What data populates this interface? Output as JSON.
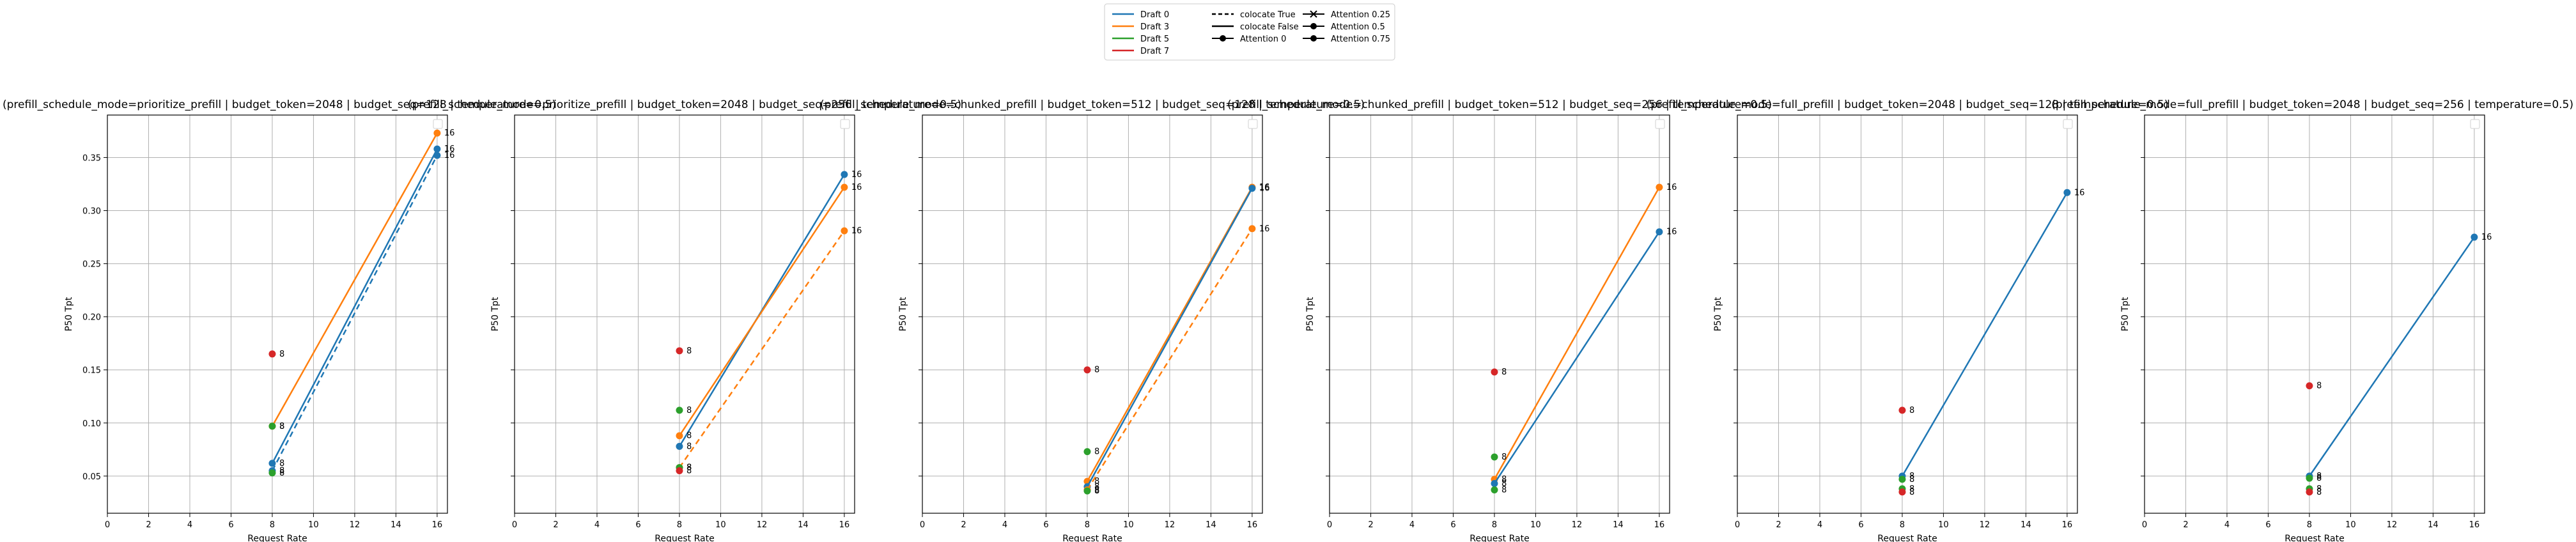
{
  "colors": {
    "draft0": "#1f77b4",
    "draft3": "#ff7f0e",
    "draft5": "#2ca02c",
    "draft7": "#d62728",
    "grid": "#b0b0b0"
  },
  "legend": {
    "columns": [
      [
        {
          "label": "Draft 0",
          "kind": "line",
          "color": "#1f77b4"
        },
        {
          "label": "Draft 3",
          "kind": "line",
          "color": "#ff7f0e"
        },
        {
          "label": "Draft 5",
          "kind": "line",
          "color": "#2ca02c"
        },
        {
          "label": "Draft 7",
          "kind": "line",
          "color": "#d62728"
        }
      ],
      [
        {
          "label": "colocate True",
          "kind": "dash",
          "color": "#000000"
        },
        {
          "label": "colocate False",
          "kind": "line",
          "color": "#000000"
        },
        {
          "label": "Attention 0",
          "kind": "dot",
          "color": "#000000"
        }
      ],
      [
        {
          "label": "Attention 0.25",
          "kind": "x",
          "color": "#000000"
        },
        {
          "label": "Attention 0.5",
          "kind": "dot",
          "color": "#000000"
        },
        {
          "label": "Attention 0.75",
          "kind": "dot",
          "color": "#000000"
        }
      ]
    ]
  },
  "chart_data": [
    {
      "type": "line",
      "title": "(prefill_schedule_mode=prioritize_prefill | budget_token=2048 | budget_seq=128 | temperature=0.5)",
      "xlabel": "Request Rate",
      "ylabel": "P50 Tpt",
      "xlim": [
        0,
        16.5
      ],
      "ylim": [
        0.015,
        0.39
      ],
      "xticks": [
        "0",
        "2",
        "4",
        "6",
        "8",
        "10",
        "12",
        "14",
        "16"
      ],
      "yticks": [
        "0.05",
        "0.10",
        "0.15",
        "0.20",
        "0.25",
        "0.30",
        "0.35"
      ],
      "grid": true,
      "show_yticklabels": true,
      "series": [
        {
          "color": "draft3",
          "dash": false,
          "x": [
            8,
            16
          ],
          "y": [
            0.097,
            0.373
          ],
          "labels": [
            "8",
            "16"
          ]
        },
        {
          "color": "draft0",
          "dash": false,
          "x": [
            8,
            16
          ],
          "y": [
            0.062,
            0.358
          ],
          "labels": [
            "8",
            "16"
          ]
        },
        {
          "color": "draft0",
          "dash": true,
          "x": [
            8,
            16
          ],
          "y": [
            0.055,
            0.352
          ],
          "labels": [
            "8",
            "16"
          ]
        },
        {
          "color": "draft5",
          "dash": false,
          "x": [
            8
          ],
          "y": [
            0.097
          ],
          "labels": [
            "8"
          ]
        },
        {
          "color": "draft5",
          "dash": false,
          "x": [
            8
          ],
          "y": [
            0.053
          ],
          "labels": [
            "8"
          ]
        },
        {
          "color": "draft7",
          "dash": false,
          "x": [
            8
          ],
          "y": [
            0.165
          ],
          "labels": [
            "8"
          ]
        }
      ]
    },
    {
      "type": "line",
      "title": "(prefill_schedule_mode=prioritize_prefill | budget_token=2048 | budget_seq=256 | temperature=0.5)",
      "xlabel": "Request Rate",
      "ylabel": "P50 Tpt",
      "xlim": [
        0,
        16.5
      ],
      "ylim": [
        0.015,
        0.39
      ],
      "xticks": [
        "0",
        "2",
        "4",
        "6",
        "8",
        "10",
        "12",
        "14",
        "16"
      ],
      "yticks": [
        "0.05",
        "0.10",
        "0.15",
        "0.20",
        "0.25",
        "0.30",
        "0.35"
      ],
      "grid": true,
      "show_yticklabels": false,
      "series": [
        {
          "color": "draft0",
          "dash": false,
          "x": [
            8,
            16
          ],
          "y": [
            0.078,
            0.334
          ],
          "labels": [
            "8",
            "16"
          ]
        },
        {
          "color": "draft3",
          "dash": false,
          "x": [
            8,
            16
          ],
          "y": [
            0.088,
            0.322
          ],
          "labels": [
            "8",
            "16"
          ]
        },
        {
          "color": "draft3",
          "dash": true,
          "x": [
            8,
            16
          ],
          "y": [
            0.058,
            0.281
          ],
          "labels": [
            "8",
            "16"
          ]
        },
        {
          "color": "draft5",
          "dash": false,
          "x": [
            8
          ],
          "y": [
            0.112
          ],
          "labels": [
            "8"
          ]
        },
        {
          "color": "draft5",
          "dash": false,
          "x": [
            8
          ],
          "y": [
            0.058
          ],
          "labels": [
            "8"
          ]
        },
        {
          "color": "draft7",
          "dash": false,
          "x": [
            8
          ],
          "y": [
            0.168
          ],
          "labels": [
            "8"
          ]
        },
        {
          "color": "draft7",
          "dash": false,
          "x": [
            8
          ],
          "y": [
            0.055
          ],
          "labels": [
            "8"
          ]
        }
      ]
    },
    {
      "type": "line",
      "title": "(prefill_schedule_mode=chunked_prefill | budget_token=512 | budget_seq=128 | temperature=0.5)",
      "xlabel": "Request Rate",
      "ylabel": "P50 Tpt",
      "xlim": [
        0,
        16.5
      ],
      "ylim": [
        0.015,
        0.39
      ],
      "xticks": [
        "0",
        "2",
        "4",
        "6",
        "8",
        "10",
        "12",
        "14",
        "16"
      ],
      "yticks": [
        "0.05",
        "0.10",
        "0.15",
        "0.20",
        "0.25",
        "0.30",
        "0.35"
      ],
      "grid": true,
      "show_yticklabels": false,
      "series": [
        {
          "color": "draft3",
          "dash": false,
          "x": [
            8,
            16
          ],
          "y": [
            0.045,
            0.322
          ],
          "labels": [
            "8",
            "16"
          ]
        },
        {
          "color": "draft0",
          "dash": false,
          "x": [
            8,
            16
          ],
          "y": [
            0.04,
            0.321
          ],
          "labels": [
            "8",
            "16"
          ]
        },
        {
          "color": "draft3",
          "dash": true,
          "x": [
            8,
            16
          ],
          "y": [
            0.037,
            0.283
          ],
          "labels": [
            "8",
            "16"
          ]
        },
        {
          "color": "draft5",
          "dash": false,
          "x": [
            8
          ],
          "y": [
            0.073
          ],
          "labels": [
            "8"
          ]
        },
        {
          "color": "draft5",
          "dash": false,
          "x": [
            8
          ],
          "y": [
            0.036
          ],
          "labels": [
            "8"
          ]
        },
        {
          "color": "draft7",
          "dash": false,
          "x": [
            8
          ],
          "y": [
            0.15
          ],
          "labels": [
            "8"
          ]
        }
      ]
    },
    {
      "type": "line",
      "title": "(prefill_schedule_mode=chunked_prefill | budget_token=512 | budget_seq=256 | temperature=0.5)",
      "xlabel": "Request Rate",
      "ylabel": "P50 Tpt",
      "xlim": [
        0,
        16.5
      ],
      "ylim": [
        0.015,
        0.39
      ],
      "xticks": [
        "0",
        "2",
        "4",
        "6",
        "8",
        "10",
        "12",
        "14",
        "16"
      ],
      "yticks": [
        "0.05",
        "0.10",
        "0.15",
        "0.20",
        "0.25",
        "0.30",
        "0.35"
      ],
      "grid": true,
      "show_yticklabels": false,
      "series": [
        {
          "color": "draft3",
          "dash": false,
          "x": [
            8,
            16
          ],
          "y": [
            0.047,
            0.322
          ],
          "labels": [
            "8",
            "16"
          ]
        },
        {
          "color": "draft0",
          "dash": false,
          "x": [
            8,
            16
          ],
          "y": [
            0.043,
            0.28
          ],
          "labels": [
            "8",
            "16"
          ]
        },
        {
          "color": "draft5",
          "dash": false,
          "x": [
            8
          ],
          "y": [
            0.068
          ],
          "labels": [
            "8"
          ]
        },
        {
          "color": "draft5",
          "dash": false,
          "x": [
            8
          ],
          "y": [
            0.037
          ],
          "labels": [
            "8"
          ]
        },
        {
          "color": "draft7",
          "dash": false,
          "x": [
            8
          ],
          "y": [
            0.148
          ],
          "labels": [
            "8"
          ]
        }
      ]
    },
    {
      "type": "line",
      "title": "(prefill_schedule_mode=full_prefill | budget_token=2048 | budget_seq=128 | temperature=0.5)",
      "xlabel": "Request Rate",
      "ylabel": "P50 Tpt",
      "xlim": [
        0,
        16.5
      ],
      "ylim": [
        0.015,
        0.39
      ],
      "xticks": [
        "0",
        "2",
        "4",
        "6",
        "8",
        "10",
        "12",
        "14",
        "16"
      ],
      "yticks": [
        "0.05",
        "0.10",
        "0.15",
        "0.20",
        "0.25",
        "0.30",
        "0.35"
      ],
      "grid": true,
      "show_yticklabels": false,
      "series": [
        {
          "color": "draft0",
          "dash": false,
          "x": [
            8,
            16
          ],
          "y": [
            0.05,
            0.317
          ],
          "labels": [
            "8",
            "16"
          ]
        },
        {
          "color": "draft5",
          "dash": false,
          "x": [
            8
          ],
          "y": [
            0.047
          ],
          "labels": [
            "8"
          ]
        },
        {
          "color": "draft5",
          "dash": false,
          "x": [
            8
          ],
          "y": [
            0.038
          ],
          "labels": [
            "8"
          ]
        },
        {
          "color": "draft7",
          "dash": false,
          "x": [
            8
          ],
          "y": [
            0.112
          ],
          "labels": [
            "8"
          ]
        },
        {
          "color": "draft7",
          "dash": false,
          "x": [
            8
          ],
          "y": [
            0.035
          ],
          "labels": [
            "8"
          ]
        }
      ]
    },
    {
      "type": "line",
      "title": "(prefill_schedule_mode=full_prefill | budget_token=2048 | budget_seq=256 | temperature=0.5)",
      "xlabel": "Request Rate",
      "ylabel": "P50 Tpt",
      "xlim": [
        0,
        16.5
      ],
      "ylim": [
        0.015,
        0.39
      ],
      "xticks": [
        "0",
        "2",
        "4",
        "6",
        "8",
        "10",
        "12",
        "14",
        "16"
      ],
      "yticks": [
        "0.05",
        "0.10",
        "0.15",
        "0.20",
        "0.25",
        "0.30",
        "0.35"
      ],
      "grid": true,
      "show_yticklabels": false,
      "series": [
        {
          "color": "draft0",
          "dash": false,
          "x": [
            8,
            16
          ],
          "y": [
            0.05,
            0.275
          ],
          "labels": [
            "8",
            "16"
          ]
        },
        {
          "color": "draft5",
          "dash": false,
          "x": [
            8
          ],
          "y": [
            0.048
          ],
          "labels": [
            "8"
          ]
        },
        {
          "color": "draft5",
          "dash": false,
          "x": [
            8
          ],
          "y": [
            0.038
          ],
          "labels": [
            "8"
          ]
        },
        {
          "color": "draft7",
          "dash": false,
          "x": [
            8
          ],
          "y": [
            0.135
          ],
          "labels": [
            "8"
          ]
        },
        {
          "color": "draft7",
          "dash": false,
          "x": [
            8
          ],
          "y": [
            0.035
          ],
          "labels": [
            "8"
          ]
        }
      ]
    }
  ]
}
